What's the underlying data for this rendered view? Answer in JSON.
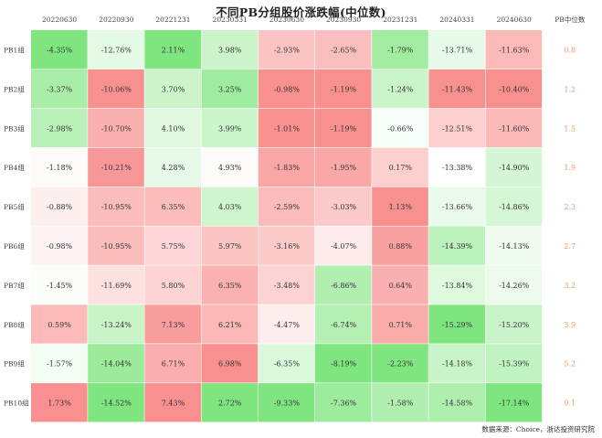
{
  "title": "不同PB分组股价涨跌幅(中位数)",
  "source": "数据来源：Choice，浙达投资研究院",
  "colors": {
    "negative_strong": "#7fe57f",
    "neutral": "#ffffff",
    "positive_strong": "#f8908f",
    "pb_text": "#e8956a"
  },
  "chart_data": {
    "type": "heatmap",
    "columns": [
      "20220630",
      "20220930",
      "20221231",
      "20230331",
      "20230630",
      "20230930",
      "20231231",
      "20240331",
      "20240630"
    ],
    "extra_column": "PB中位数",
    "rows": [
      "PB1组",
      "PB2组",
      "PB3组",
      "PB4组",
      "PB5组",
      "PB6组",
      "PB7组",
      "PB8组",
      "PB9组",
      "PB10组"
    ],
    "values": [
      [
        -4.35,
        -12.76,
        2.11,
        3.98,
        -2.93,
        -2.65,
        -1.79,
        -13.71,
        -11.63
      ],
      [
        -3.37,
        -10.06,
        3.7,
        3.25,
        -0.98,
        -1.19,
        -1.24,
        -11.43,
        -10.4
      ],
      [
        -2.98,
        -10.7,
        4.1,
        3.99,
        -1.01,
        -1.19,
        -0.66,
        -12.51,
        -11.6
      ],
      [
        -1.18,
        -10.21,
        4.28,
        4.93,
        -1.83,
        -1.95,
        0.17,
        -13.38,
        -14.9
      ],
      [
        -0.88,
        -10.95,
        6.35,
        4.03,
        -2.59,
        -3.03,
        1.13,
        -13.66,
        -14.86
      ],
      [
        -0.98,
        -10.95,
        5.75,
        5.97,
        -3.16,
        -4.07,
        0.88,
        -14.39,
        -14.13
      ],
      [
        -1.45,
        -11.69,
        5.8,
        6.35,
        -3.48,
        -6.86,
        0.64,
        -13.84,
        -14.26
      ],
      [
        0.59,
        -13.24,
        7.13,
        6.21,
        -4.47,
        -6.74,
        0.71,
        -15.29,
        -15.2
      ],
      [
        -1.57,
        -14.04,
        6.71,
        6.98,
        -6.35,
        -8.19,
        -2.23,
        -14.18,
        -15.39
      ],
      [
        1.73,
        -14.52,
        7.43,
        2.72,
        -9.33,
        -7.36,
        -1.58,
        -14.58,
        -17.14
      ]
    ],
    "value_unit": "%",
    "pb_median": [
      "0.8",
      "1.2",
      "1.5",
      "1.9",
      "2.3",
      "2.7",
      "3.2",
      "3.9",
      "5.2",
      "9.1"
    ]
  }
}
